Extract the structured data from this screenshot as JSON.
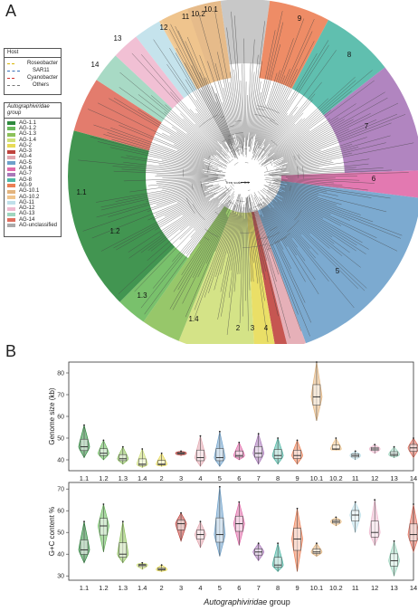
{
  "panel_a_label": "A",
  "panel_b_label": "B",
  "tree": {
    "scale_label": "Tree scale: 0.1",
    "clades": [
      {
        "label": "10.1",
        "color": "#e3b47d"
      },
      {
        "label": "9",
        "color": "#ec7f55"
      },
      {
        "label": "8",
        "color": "#4fb8a6"
      },
      {
        "label": "7",
        "color": "#a978b9"
      },
      {
        "label": "6",
        "color": "#e06aa8"
      },
      {
        "label": "5",
        "color": "#6ea1cb"
      },
      {
        "label": "4",
        "color": "#e3a7b0"
      },
      {
        "label": "3",
        "color": "#c0443e"
      },
      {
        "label": "2",
        "color": "#e8db57"
      },
      {
        "label": "1.4",
        "color": "#cfe07a"
      },
      {
        "label": "1.3",
        "color": "#8cc15a"
      },
      {
        "label": "1.2",
        "color": "#6aba5c"
      },
      {
        "label": "1.1",
        "color": "#2e8a3e"
      },
      {
        "label": "14",
        "color": "#e06e5d"
      },
      {
        "label": "13",
        "color": "#9ed6bf"
      },
      {
        "label": "12",
        "color": "#efb9cf"
      },
      {
        "label": "11",
        "color": "#bfe0ea"
      },
      {
        "label": "10.2",
        "color": "#f0c58d"
      }
    ]
  },
  "host_legend": {
    "title": "Host",
    "items": [
      {
        "label": "Roseobacter",
        "color": "#d8b400"
      },
      {
        "label": "SAR11",
        "color": "#3a6fb7"
      },
      {
        "label": "Cyanobacter",
        "color": "#d03030"
      },
      {
        "label": "Others",
        "color": "#777777"
      }
    ]
  },
  "group_legend": {
    "title": "Autographiviridae group",
    "items": [
      {
        "label": "AG-1.1",
        "color": "#2e8a3e"
      },
      {
        "label": "AG-1.2",
        "color": "#6aba5c"
      },
      {
        "label": "AG-1.3",
        "color": "#8cc15a"
      },
      {
        "label": "AG-1.4",
        "color": "#cfe07a"
      },
      {
        "label": "AG-2",
        "color": "#e8db57"
      },
      {
        "label": "AG-3",
        "color": "#c0443e"
      },
      {
        "label": "AG-4",
        "color": "#e3a7b0"
      },
      {
        "label": "AG-5",
        "color": "#6ea1cb"
      },
      {
        "label": "AG-6",
        "color": "#e06aa8"
      },
      {
        "label": "AG-7",
        "color": "#a978b9"
      },
      {
        "label": "AG-8",
        "color": "#4fb8a6"
      },
      {
        "label": "AG-9",
        "color": "#ec7f55"
      },
      {
        "label": "AG-10.1",
        "color": "#e3b47d"
      },
      {
        "label": "AG-10.2",
        "color": "#f0c58d"
      },
      {
        "label": "AG-11",
        "color": "#bfe0ea"
      },
      {
        "label": "AG-12",
        "color": "#efb9cf"
      },
      {
        "label": "AG-13",
        "color": "#9ed6bf"
      },
      {
        "label": "AG-14",
        "color": "#e06e5d"
      },
      {
        "label": "AG-unclassified",
        "color": "#aaaaaa"
      }
    ]
  },
  "chart_data": [
    {
      "type": "violin",
      "ylabel": "Genome size (kb)",
      "ylim": [
        35,
        85
      ],
      "yticks": [
        40,
        50,
        60,
        70,
        80
      ],
      "categories": [
        "1.1",
        "1.2",
        "1.3",
        "1.4",
        "2",
        "3",
        "4",
        "5",
        "6",
        "7",
        "8",
        "9",
        "10.1",
        "10.2",
        "11",
        "12",
        "13",
        "14"
      ],
      "medians": [
        46,
        43,
        40.5,
        38,
        38,
        43,
        41,
        41,
        42,
        43,
        42,
        42,
        69,
        45,
        42,
        45,
        42.5,
        45.5
      ],
      "mins": [
        41,
        40,
        38,
        36.5,
        37,
        42,
        37,
        37,
        40,
        38,
        38,
        38,
        58,
        44.5,
        40,
        43,
        41,
        41
      ],
      "maxs": [
        56,
        49,
        46,
        45,
        43,
        44,
        51,
        53,
        48,
        52,
        50,
        49,
        85,
        50,
        44,
        47,
        46,
        50
      ],
      "colors": [
        "#2e8a3e",
        "#6aba5c",
        "#8cc15a",
        "#cfe07a",
        "#e8db57",
        "#c0443e",
        "#e3a7b0",
        "#6ea1cb",
        "#e06aa8",
        "#a978b9",
        "#4fb8a6",
        "#ec7f55",
        "#e3b47d",
        "#f0c58d",
        "#bfe0ea",
        "#efb9cf",
        "#9ed6bf",
        "#e06e5d"
      ]
    },
    {
      "type": "violin",
      "ylabel": "G+C content %",
      "xlabel_italic": "Autographiviridae",
      "xlabel_rest": " group",
      "ylim": [
        28,
        73
      ],
      "yticks": [
        30,
        40,
        50,
        60,
        70
      ],
      "categories": [
        "1.1",
        "1.2",
        "1.3",
        "1.4",
        "2",
        "3",
        "4",
        "5",
        "6",
        "7",
        "8",
        "9",
        "10.1",
        "10.2",
        "11",
        "12",
        "13",
        "14"
      ],
      "medians": [
        42,
        53,
        40,
        35,
        33,
        54,
        49,
        49,
        54,
        41,
        35,
        47,
        41,
        55,
        58,
        50,
        37,
        49
      ],
      "mins": [
        36,
        41,
        36,
        33,
        32,
        46,
        43,
        39,
        44,
        37,
        32,
        32,
        39,
        53,
        50,
        44,
        30,
        41
      ],
      "maxs": [
        55,
        63,
        55,
        36,
        35,
        59,
        55,
        71,
        64,
        45,
        45,
        61,
        45,
        57,
        64,
        65,
        46,
        63
      ],
      "colors": [
        "#2e8a3e",
        "#6aba5c",
        "#8cc15a",
        "#cfe07a",
        "#e8db57",
        "#c0443e",
        "#e3a7b0",
        "#6ea1cb",
        "#e06aa8",
        "#a978b9",
        "#4fb8a6",
        "#ec7f55",
        "#e3b47d",
        "#f0c58d",
        "#bfe0ea",
        "#efb9cf",
        "#9ed6bf",
        "#e06e5d"
      ]
    }
  ]
}
